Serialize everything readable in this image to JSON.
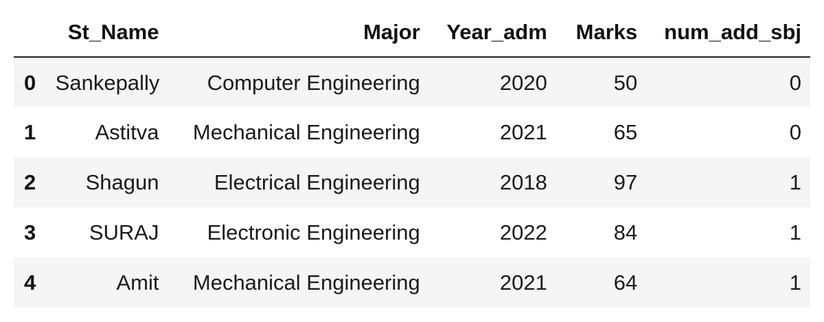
{
  "table": {
    "columns": [
      "St_Name",
      "Major",
      "Year_adm",
      "Marks",
      "num_add_sbj"
    ],
    "rows": [
      {
        "index": "0",
        "St_Name": "Sankepally",
        "Major": "Computer Engineering",
        "Year_adm": "2020",
        "Marks": "50",
        "num_add_sbj": "0"
      },
      {
        "index": "1",
        "St_Name": "Astitva",
        "Major": "Mechanical Engineering",
        "Year_adm": "2021",
        "Marks": "65",
        "num_add_sbj": "0"
      },
      {
        "index": "2",
        "St_Name": "Shagun",
        "Major": "Electrical Engineering",
        "Year_adm": "2018",
        "Marks": "97",
        "num_add_sbj": "1"
      },
      {
        "index": "3",
        "St_Name": "SURAJ",
        "Major": "Electronic Engineering",
        "Year_adm": "2022",
        "Marks": "84",
        "num_add_sbj": "1"
      },
      {
        "index": "4",
        "St_Name": "Amit",
        "Major": "Mechanical Engineering",
        "Year_adm": "2021",
        "Marks": "64",
        "num_add_sbj": "1"
      }
    ]
  },
  "colors": {
    "striped_row_bg": "#f5f5f5",
    "header_border": "#222222",
    "text": "#111111"
  }
}
